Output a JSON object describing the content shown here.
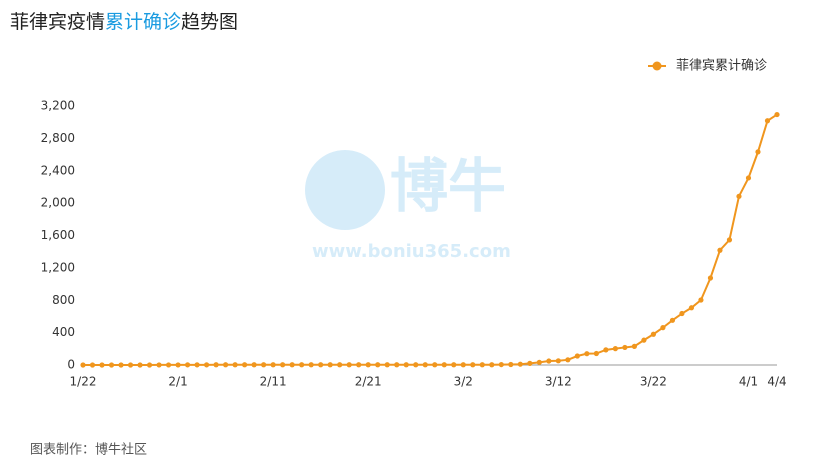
{
  "chart_data": {
    "type": "line",
    "title": [
      "菲律宾疫情",
      "累计确诊",
      "趋势图"
    ],
    "watermark": [
      "博牛",
      "www.boniu365.com"
    ],
    "source": "图表制作：博牛社区",
    "categories": [
      "1/22",
      null,
      null,
      null,
      null,
      null,
      null,
      null,
      null,
      null,
      "2/1",
      null,
      null,
      null,
      null,
      null,
      null,
      null,
      null,
      null,
      "2/11",
      null,
      null,
      null,
      null,
      null,
      null,
      null,
      null,
      null,
      "2/21",
      null,
      null,
      null,
      null,
      null,
      null,
      null,
      null,
      null,
      "3/2",
      null,
      null,
      null,
      null,
      null,
      null,
      null,
      null,
      null,
      "3/12",
      null,
      null,
      null,
      null,
      null,
      null,
      null,
      null,
      null,
      "3/22",
      null,
      null,
      null,
      null,
      null,
      null,
      null,
      null,
      null,
      "4/1",
      null,
      null,
      "4/4"
    ],
    "series": [
      {
        "name": "菲律宾累计确诊",
        "color": "#f0961e",
        "values": [
          0,
          0,
          0,
          0,
          0,
          0,
          0,
          0,
          1,
          1,
          1,
          2,
          2,
          2,
          3,
          3,
          3,
          3,
          3,
          3,
          3,
          3,
          3,
          3,
          3,
          3,
          3,
          3,
          3,
          3,
          3,
          3,
          3,
          3,
          3,
          3,
          3,
          3,
          3,
          3,
          3,
          3,
          3,
          3,
          5,
          6,
          10,
          20,
          33,
          49,
          52,
          64,
          111,
          140,
          142,
          187,
          202,
          217,
          230,
          307,
          380,
          462,
          552,
          636,
          707,
          803,
          1075,
          1418,
          1546,
          2084,
          2311,
          2633,
          3018,
          3094
        ]
      }
    ],
    "ylim": [
      0,
      3200
    ],
    "yticks": [
      0,
      400,
      800,
      {
        "value": 1200,
        "label": "1,200"
      },
      {
        "value": 1600,
        "label": "1,600"
      },
      {
        "value": 2000,
        "label": "2,000"
      },
      {
        "value": 2400,
        "label": "2,400"
      },
      {
        "value": 2800,
        "label": "2,800"
      },
      {
        "value": 3200,
        "label": "3,200"
      }
    ],
    "legend": "top-right",
    "grid": false
  }
}
